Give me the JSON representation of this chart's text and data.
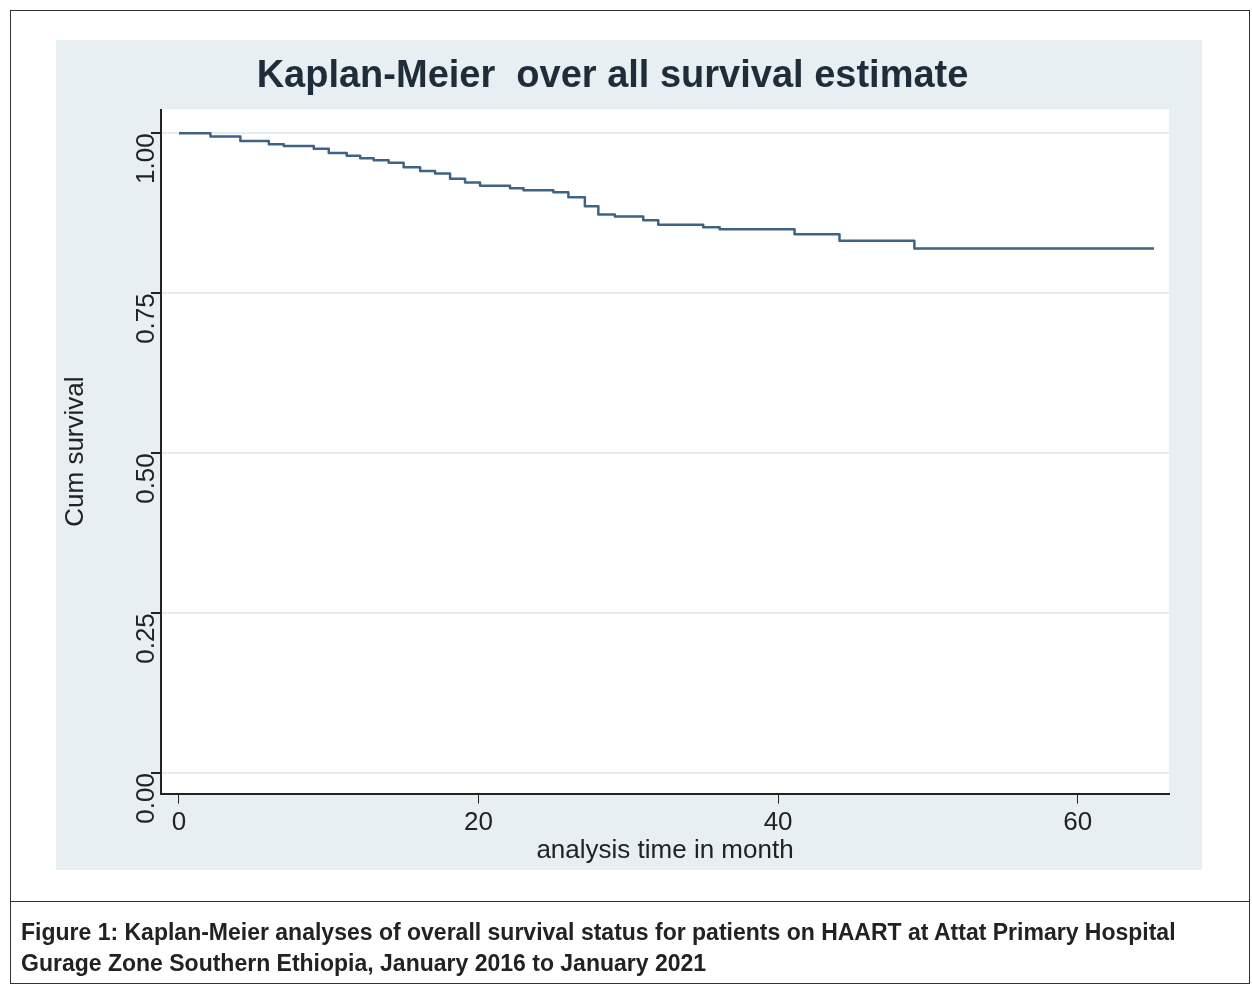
{
  "chart_data": {
    "type": "step",
    "title": "Kaplan-Meier  over all survival estimate",
    "xlabel": "analysis time in month",
    "ylabel": "Cum survival",
    "x": [
      0,
      2.1,
      4.1,
      6.0,
      7.0,
      9.0,
      10.0,
      11.2,
      12.1,
      13.0,
      14.0,
      15.0,
      16.1,
      17.1,
      18.1,
      19.1,
      20.1,
      22.1,
      23.0,
      25.0,
      26.0,
      27.1,
      28.0,
      29.1,
      31.0,
      32.0,
      35.0,
      36.1,
      41.1,
      44.1,
      49.1,
      65.1
    ],
    "values": [
      1.0,
      0.995,
      0.988,
      0.983,
      0.98,
      0.976,
      0.969,
      0.965,
      0.961,
      0.958,
      0.954,
      0.947,
      0.941,
      0.937,
      0.929,
      0.923,
      0.918,
      0.914,
      0.911,
      0.908,
      0.9,
      0.886,
      0.873,
      0.87,
      0.864,
      0.857,
      0.853,
      0.85,
      0.842,
      0.832,
      0.82,
      0.82
    ],
    "color": "#3e6384",
    "xlim": [
      -1.2,
      66.1
    ],
    "xticks": [
      0,
      20,
      40,
      60
    ],
    "ylim": [
      -0.032,
      1.037
    ],
    "yticks": [
      {
        "value": 0,
        "label": "0.00"
      },
      {
        "value": 0.25,
        "label": "0.25"
      },
      {
        "value": 0.5,
        "label": "0.50"
      },
      {
        "value": 0.75,
        "label": "0.75"
      },
      {
        "value": 1,
        "label": "1.00"
      }
    ],
    "grid": "y",
    "annotations": [
      "Figure 1: Kaplan-Meier analyses of overall survival status for patients on HAART at Attat Primary Hospital Gurage Zone Southern Ethiopia, January 2016 to January 2021"
    ]
  }
}
